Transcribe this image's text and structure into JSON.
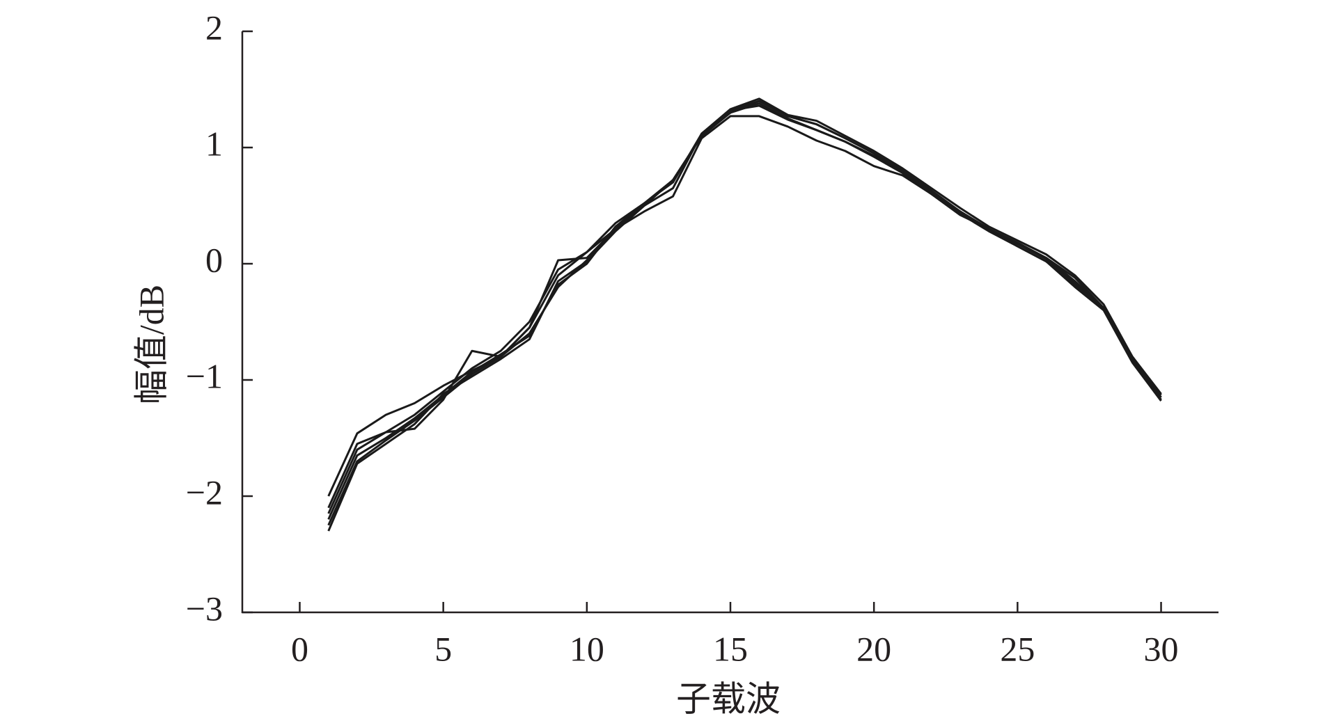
{
  "chart_data": {
    "type": "line",
    "xlabel": "子载波",
    "ylabel": "幅值/dB",
    "color": "#1a1a1a",
    "x": [
      1,
      2,
      3,
      4,
      5,
      6,
      7,
      8,
      9,
      10,
      11,
      12,
      13,
      14,
      15,
      16,
      17,
      18,
      19,
      20,
      21,
      22,
      23,
      24,
      25,
      26,
      27,
      28,
      29,
      30
    ],
    "series": [
      {
        "values": [
          -2.0,
          -1.46,
          -1.3,
          -1.2,
          -1.05,
          -0.92,
          -0.8,
          -0.55,
          -0.1,
          0.1,
          0.35,
          0.52,
          0.72,
          1.1,
          1.3,
          1.38,
          1.25,
          1.15,
          1.05,
          0.93,
          0.8,
          0.63,
          0.45,
          0.3,
          0.17,
          0.04,
          -0.17,
          -0.38,
          -0.8,
          -1.12
        ]
      },
      {
        "values": [
          -2.1,
          -1.55,
          -1.45,
          -1.42,
          -1.17,
          -0.75,
          -0.8,
          -0.55,
          0.03,
          0.05,
          0.3,
          0.5,
          0.72,
          1.1,
          1.3,
          1.4,
          1.27,
          1.2,
          1.08,
          0.95,
          0.8,
          0.62,
          0.45,
          0.3,
          0.18,
          0.05,
          -0.12,
          -0.38,
          -0.82,
          -1.15
        ]
      },
      {
        "values": [
          -2.15,
          -1.6,
          -1.45,
          -1.3,
          -1.1,
          -0.9,
          -0.75,
          -0.5,
          -0.05,
          0.1,
          0.3,
          0.45,
          0.58,
          1.08,
          1.27,
          1.27,
          1.18,
          1.06,
          0.97,
          0.84,
          0.76,
          0.6,
          0.42,
          0.3,
          0.15,
          0.02,
          -0.2,
          -0.4,
          -0.85,
          -1.18
        ]
      },
      {
        "values": [
          -2.3,
          -1.72,
          -1.55,
          -1.38,
          -1.12,
          -0.97,
          -0.82,
          -0.65,
          -0.15,
          0.02,
          0.28,
          0.5,
          0.65,
          1.12,
          1.33,
          1.42,
          1.28,
          1.23,
          1.1,
          0.97,
          0.82,
          0.65,
          0.48,
          0.32,
          0.2,
          0.08,
          -0.1,
          -0.35,
          -0.8,
          -1.13
        ]
      },
      {
        "values": [
          -2.25,
          -1.7,
          -1.52,
          -1.35,
          -1.15,
          -0.95,
          -0.8,
          -0.6,
          -0.2,
          0.03,
          0.3,
          0.5,
          0.72,
          1.1,
          1.32,
          1.4,
          1.27,
          1.2,
          1.08,
          0.95,
          0.8,
          0.62,
          0.45,
          0.3,
          0.18,
          0.05,
          -0.15,
          -0.38,
          -0.82,
          -1.15
        ]
      },
      {
        "values": [
          -2.2,
          -1.65,
          -1.5,
          -1.33,
          -1.13,
          -0.93,
          -0.78,
          -0.62,
          -0.18,
          0.0,
          0.32,
          0.52,
          0.7,
          1.12,
          1.32,
          1.36,
          1.24,
          1.15,
          1.05,
          0.92,
          0.78,
          0.6,
          0.43,
          0.28,
          0.15,
          0.02,
          -0.18,
          -0.38,
          -0.83,
          -1.17
        ]
      }
    ],
    "xlim": [
      -2,
      32
    ],
    "xticks": [
      0,
      5,
      10,
      15,
      20,
      25,
      30
    ],
    "ylim": [
      -3,
      2
    ],
    "yticks": [
      {
        "value": -3,
        "label": "−3"
      },
      {
        "value": -2,
        "label": "−2"
      },
      {
        "value": -1,
        "label": "−1"
      },
      0,
      1,
      2
    ],
    "grid": false
  }
}
